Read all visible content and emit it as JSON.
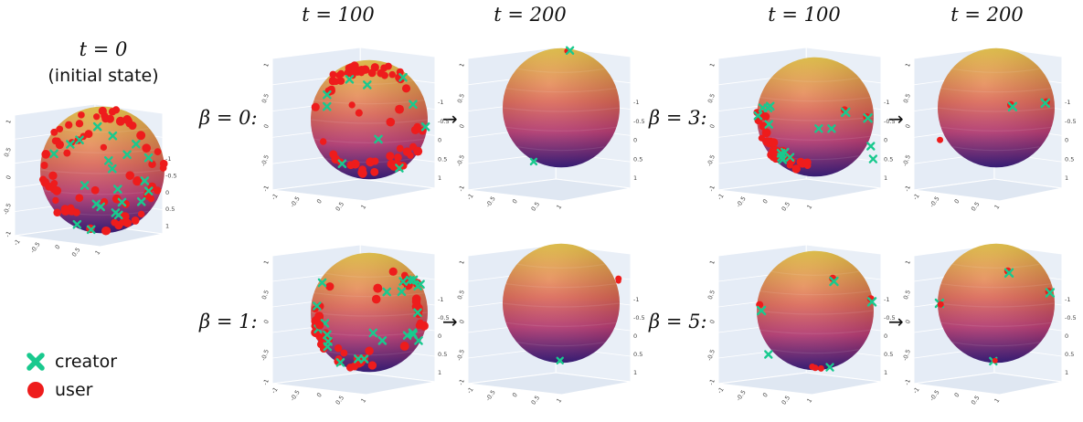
{
  "header": {
    "t0_title": "t = 0",
    "t0_subtitle": "(initial state)",
    "col_labels": [
      "t = 100",
      "t = 200",
      "t = 100",
      "t = 200"
    ]
  },
  "row_labels": [
    "β = 0:",
    "β = 1:",
    "β = 3:",
    "β = 5:"
  ],
  "arrow": "→",
  "axis_ticks": [
    "-1",
    "-0.5",
    "0",
    "0.5",
    "1"
  ],
  "legend": {
    "creator_label": "creator",
    "user_label": "user"
  },
  "colors": {
    "creator": "#19c98e",
    "user": "#ee1c1c",
    "sphere_top": "#e8c23a",
    "sphere_mid": "#c23b78",
    "sphere_bottom": "#3a1c86",
    "pane": "#e5ecf6"
  }
}
